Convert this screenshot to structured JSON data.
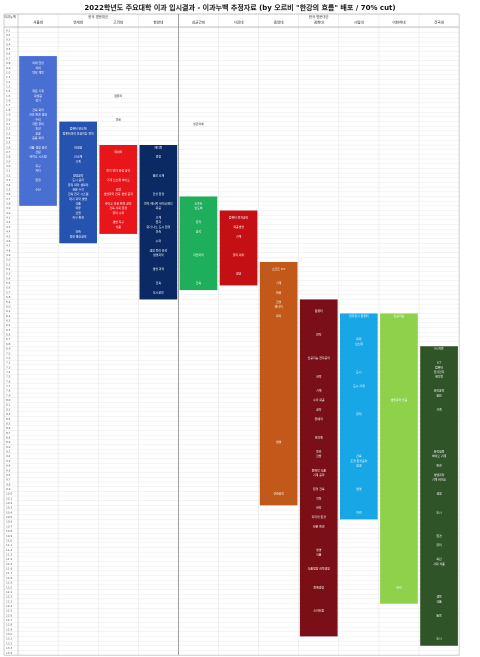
{
  "title": "2022학년도 주요대학 이과 입시결과 - 이과누백 추정자료 (by 오르비 \"한강의 흐름\" 배포 / 70% cut)",
  "corner_label": "이과누백",
  "groups": [
    {
      "label": "한국 명문대군"
    },
    {
      "label": "한국 명문대군"
    }
  ],
  "universities": [
    {
      "name": "서울대"
    },
    {
      "name": "연세대"
    },
    {
      "name": "고려대"
    },
    {
      "name": "한양대"
    },
    {
      "name": "성균관대"
    },
    {
      "name": "서강대"
    },
    {
      "name": "중앙대"
    },
    {
      "name": "경희대"
    },
    {
      "name": "시립대"
    },
    {
      "name": "이화여대"
    },
    {
      "name": "건국대"
    }
  ],
  "row_labels": [
    "0.1",
    "0.2",
    "0.3",
    "0.4",
    "0.5",
    "0.6",
    "0.7",
    "0.8",
    "0.9",
    "1.0",
    "1.1",
    "1.2",
    "1.3",
    "1.4",
    "1.5",
    "1.6",
    "1.7",
    "1.8",
    "1.9",
    "2.0",
    "2.1",
    "2.2",
    "2.3",
    "2.4",
    "2.5",
    "2.6",
    "2.7",
    "2.8",
    "2.9",
    "3.0",
    "3.1",
    "3.2",
    "3.3",
    "3.4",
    "3.5",
    "3.6",
    "3.7",
    "3.8",
    "3.9",
    "4.0",
    "4.1",
    "4.2",
    "4.3",
    "4.4",
    "4.5",
    "4.6",
    "4.7",
    "4.8",
    "4.9",
    "5.0",
    "5.1",
    "5.2",
    "5.3",
    "5.4",
    "5.5",
    "5.6",
    "5.7",
    "5.8",
    "5.9",
    "6.0",
    "6.1",
    "6.2",
    "6.3",
    "6.4",
    "6.5",
    "6.6",
    "6.7",
    "6.8",
    "6.9",
    "7.0",
    "7.1",
    "7.2",
    "7.3",
    "7.4",
    "7.5",
    "7.6",
    "7.7",
    "7.8",
    "7.9",
    "8.0",
    "8.1",
    "8.2",
    "8.3",
    "8.4",
    "8.5",
    "8.6",
    "8.7",
    "8.8",
    "8.9",
    "9.0",
    "9.1",
    "9.2",
    "9.3",
    "9.4",
    "9.5",
    "9.6",
    "9.7",
    "9.8",
    "9.9",
    "10.0",
    "10.1",
    "10.2",
    "10.3",
    "10.4",
    "10.5",
    "10.6",
    "10.7",
    "10.8",
    "10.9",
    "11.0",
    "11.1",
    "11.2",
    "11.3",
    "11.4",
    "11.5",
    "11.6",
    "11.7",
    "11.8",
    "11.9",
    "12.0",
    "12.1",
    "12.2",
    "12.3",
    "12.4",
    "12.5",
    "12.6",
    "12.7",
    "12.8",
    "12.9",
    "13.0",
    "13.1",
    "13.2",
    "13.3",
    "13.4"
  ],
  "colors": {
    "seoul": "#4a6fd2",
    "yonsei": "#2753b0",
    "korea": "#e8151b",
    "hanyang": "#0b2a63",
    "skku": "#1fae5b",
    "sogang": "#c40f14",
    "chungang": "#c2591a",
    "kyunghee": "#7a0f18",
    "uos": "#18a7e6",
    "ewha": "#8fd14b",
    "konkuk": "#2f5428",
    "grid": "#dcdcdc"
  },
  "blocks": [
    {
      "university": "서울대",
      "from": 0.7,
      "to": 3.8,
      "color": "seoul"
    },
    {
      "university": "연세대",
      "from": 2.1,
      "to": 4.6,
      "color": "yonsei"
    },
    {
      "university": "고려대",
      "from": 2.6,
      "to": 4.4,
      "color": "korea"
    },
    {
      "university": "한양대",
      "from": 2.6,
      "to": 5.8,
      "color": "hanyang"
    },
    {
      "university": "성균관대",
      "from": 3.7,
      "to": 5.6,
      "color": "skku"
    },
    {
      "university": "서강대",
      "from": 4.0,
      "to": 5.5,
      "color": "sogang"
    },
    {
      "university": "중앙대",
      "from": 5.1,
      "to": 10.2,
      "color": "chungang"
    },
    {
      "university": "경희대",
      "from": 5.9,
      "to": 13.0,
      "color": "kyunghee"
    },
    {
      "university": "시립대",
      "from": 6.2,
      "to": 10.5,
      "color": "uos"
    },
    {
      "university": "이화여대",
      "from": 6.2,
      "to": 12.3,
      "color": "ewha"
    },
    {
      "university": "건국대",
      "from": 6.9,
      "to": 13.2,
      "color": "konkuk"
    }
  ],
  "annotations": [
    {
      "university": "서울대",
      "row": 0.8,
      "text": "의대 연합"
    },
    {
      "university": "서울대",
      "row": 0.9,
      "text": "치의"
    },
    {
      "university": "서울대",
      "row": 1.0,
      "text": "약학 계열"
    },
    {
      "university": "서울대",
      "row": 1.4,
      "text": "재료 기계"
    },
    {
      "university": "서울대",
      "row": 1.5,
      "text": "화생공"
    },
    {
      "university": "서울대",
      "row": 1.6,
      "text": "전기"
    },
    {
      "university": "서울대",
      "row": 1.8,
      "text": "건축 화학"
    },
    {
      "university": "서울대",
      "row": 1.9,
      "text": "건설 환경 생명"
    },
    {
      "university": "서울대",
      "row": 2.0,
      "text": "수리"
    },
    {
      "university": "서울대",
      "row": 2.1,
      "text": "자원 물리"
    },
    {
      "university": "서울대",
      "row": 2.2,
      "text": "조선"
    },
    {
      "university": "서울대",
      "row": 2.3,
      "text": "항공"
    },
    {
      "university": "서울대",
      "row": 2.4,
      "text": "응용 화학"
    },
    {
      "university": "서울대",
      "row": 2.6,
      "text": "식품 생명 공학"
    },
    {
      "university": "서울대",
      "row": 2.7,
      "text": "산림"
    },
    {
      "university": "서울대",
      "row": 2.8,
      "text": "바이오 시스템"
    },
    {
      "university": "서울대",
      "row": 3.0,
      "text": "지구"
    },
    {
      "university": "서울대",
      "row": 3.1,
      "text": "지리"
    },
    {
      "university": "서울대",
      "row": 3.3,
      "text": "환경"
    },
    {
      "university": "서울대",
      "row": 3.5,
      "text": "수산"
    },
    {
      "university": "연세대",
      "row": 2.2,
      "text": "컴퓨터 반도체"
    },
    {
      "university": "연세대",
      "row": 2.3,
      "text": "컴퓨터과학 인공지능 전자"
    },
    {
      "university": "연세대",
      "row": 2.6,
      "text": "화생공"
    },
    {
      "university": "연세대",
      "row": 2.8,
      "text": "신소재"
    },
    {
      "university": "연세대",
      "row": 2.9,
      "text": "기계"
    },
    {
      "university": "연세대",
      "row": 3.2,
      "text": "생명공학"
    },
    {
      "university": "연세대",
      "row": 3.3,
      "text": "도시 공학"
    },
    {
      "university": "연세대",
      "row": 3.4,
      "text": "물리 화학 생화학"
    },
    {
      "university": "연세대",
      "row": 3.5,
      "text": "천문 수학"
    },
    {
      "university": "연세대",
      "row": 3.6,
      "text": "건축 전기 시스템"
    },
    {
      "university": "연세대",
      "row": 3.7,
      "text": "대기 과학 생명"
    },
    {
      "university": "연세대",
      "row": 3.8,
      "text": "식품"
    },
    {
      "university": "연세대",
      "row": 3.9,
      "text": "의류"
    },
    {
      "university": "연세대",
      "row": 4.0,
      "text": "산업"
    },
    {
      "university": "연세대",
      "row": 4.1,
      "text": "지구 환경"
    },
    {
      "university": "연세대",
      "row": 4.4,
      "text": "건축"
    },
    {
      "university": "연세대",
      "row": 4.5,
      "text": "정보 통신공학"
    },
    {
      "university": "고려대",
      "row": 1.8,
      "text": "반도체"
    },
    {
      "university": "고려대",
      "row": 2.4,
      "text": "자유"
    },
    {
      "university": "고려대",
      "row": 2.7,
      "text": "데이터"
    },
    {
      "university": "고려대",
      "row": 3.1,
      "text": "전기 전자 화생 공학"
    },
    {
      "university": "고려대",
      "row": 3.3,
      "text": "기계 신소재 바이오"
    },
    {
      "university": "고려대",
      "row": 3.5,
      "text": "산업"
    },
    {
      "university": "고려대",
      "row": 3.6,
      "text": "생명과학 건축 생명 공학"
    },
    {
      "university": "고려대",
      "row": 3.8,
      "text": "바이오 의료 환경 공학"
    },
    {
      "university": "고려대",
      "row": 3.9,
      "text": "건축 사회 환경"
    },
    {
      "university": "고려대",
      "row": 4.0,
      "text": "물리 수학"
    },
    {
      "university": "고려대",
      "row": 4.2,
      "text": "생명 지구"
    },
    {
      "university": "고려대",
      "row": 4.3,
      "text": "식품"
    },
    {
      "university": "한양대",
      "row": 2.6,
      "text": "메디컬"
    },
    {
      "university": "한양대",
      "row": 2.8,
      "text": "행정"
    },
    {
      "university": "한양대",
      "row": 3.2,
      "text": "융합 소재"
    },
    {
      "university": "한양대",
      "row": 3.6,
      "text": "건설 환경"
    },
    {
      "university": "한양대",
      "row": 3.8,
      "text": "전자 에너지 바이오메디"
    },
    {
      "university": "한양대",
      "row": 3.9,
      "text": "화공"
    },
    {
      "university": "한양대",
      "row": 4.1,
      "text": "기계"
    },
    {
      "university": "한양대",
      "row": 4.2,
      "text": "원자"
    },
    {
      "university": "한양대",
      "row": 4.3,
      "text": "유기 나노 도시 환경"
    },
    {
      "university": "한양대",
      "row": 4.4,
      "text": "건축"
    },
    {
      "university": "한양대",
      "row": 4.6,
      "text": "수학"
    },
    {
      "university": "한양대",
      "row": 4.8,
      "text": "생명 물리 화학"
    },
    {
      "university": "한양대",
      "row": 4.9,
      "text": "생명과학"
    },
    {
      "university": "한양대",
      "row": 5.2,
      "text": "생명 과학"
    },
    {
      "university": "한양대",
      "row": 5.5,
      "text": "건축"
    },
    {
      "university": "한양대",
      "row": 5.7,
      "text": "도시공학"
    },
    {
      "university": "성균관대",
      "row": 3.8,
      "text": "소프트"
    },
    {
      "university": "성균관대",
      "row": 3.9,
      "text": "반도체"
    },
    {
      "university": "성균관대",
      "row": 4.2,
      "text": "전자"
    },
    {
      "university": "성균관대",
      "row": 4.4,
      "text": "공학"
    },
    {
      "university": "성균관대",
      "row": 4.9,
      "text": "자연과학"
    },
    {
      "university": "성균관대",
      "row": 5.5,
      "text": "건축"
    },
    {
      "university": "서강대",
      "row": 4.1,
      "text": "컴퓨터 전자공학"
    },
    {
      "university": "서강대",
      "row": 4.3,
      "text": "화공생명"
    },
    {
      "university": "서강대",
      "row": 4.5,
      "text": "기계"
    },
    {
      "university": "서강대",
      "row": 4.9,
      "text": "물리 화학"
    },
    {
      "university": "서강대",
      "row": 5.3,
      "text": "생명"
    },
    {
      "university": "중앙대",
      "row": 5.2,
      "text": "소프트 ICT"
    },
    {
      "university": "중앙대",
      "row": 5.5,
      "text": "기계"
    },
    {
      "university": "중앙대",
      "row": 5.7,
      "text": "화공"
    },
    {
      "university": "중앙대",
      "row": 5.9,
      "text": "건설"
    },
    {
      "university": "중앙대",
      "row": 6.0,
      "text": "에너지"
    },
    {
      "university": "중앙대",
      "row": 6.2,
      "text": "화학"
    },
    {
      "university": "중앙대",
      "row": 8.9,
      "text": "생명"
    },
    {
      "university": "중앙대",
      "row": 10.0,
      "text": "건축공학"
    },
    {
      "university": "경희대",
      "row": 6.1,
      "text": "컴퓨터"
    },
    {
      "university": "경희대",
      "row": 6.6,
      "text": "전자"
    },
    {
      "university": "경희대",
      "row": 7.1,
      "text": "인공지능 전자공학"
    },
    {
      "university": "경희대",
      "row": 7.5,
      "text": "한약"
    },
    {
      "university": "경희대",
      "row": 7.8,
      "text": "기계"
    },
    {
      "university": "경희대",
      "row": 8.0,
      "text": "수학 화공"
    },
    {
      "university": "경희대",
      "row": 8.2,
      "text": "공학"
    },
    {
      "university": "경희대",
      "row": 8.4,
      "text": "원예학"
    },
    {
      "university": "경희대",
      "row": 8.8,
      "text": "한의예"
    },
    {
      "university": "경희대",
      "row": 9.1,
      "text": "물리"
    },
    {
      "university": "경희대",
      "row": 9.2,
      "text": "한방"
    },
    {
      "university": "경희대",
      "row": 9.5,
      "text": "원예학 식품"
    },
    {
      "university": "경희대",
      "row": 9.6,
      "text": "기계 공학"
    },
    {
      "university": "경희대",
      "row": 9.9,
      "text": "환경 건축"
    },
    {
      "university": "경희대",
      "row": 10.1,
      "text": "지질"
    },
    {
      "university": "경희대",
      "row": 10.3,
      "text": "화학"
    },
    {
      "university": "경희대",
      "row": 10.5,
      "text": "지리학 환경"
    },
    {
      "university": "경희대",
      "row": 10.7,
      "text": "천문 환경"
    },
    {
      "university": "경희대",
      "row": 11.2,
      "text": "생명"
    },
    {
      "university": "경희대",
      "row": 11.3,
      "text": "식품"
    },
    {
      "university": "경희대",
      "row": 11.6,
      "text": "식품영양 한약생명"
    },
    {
      "university": "경희대",
      "row": 12.0,
      "text": "원예생명"
    },
    {
      "university": "경희대",
      "row": 12.5,
      "text": "스마트팜"
    },
    {
      "university": "시립대",
      "row": 6.2,
      "text": "전자전기 컴퓨터"
    },
    {
      "university": "시립대",
      "row": 6.7,
      "text": "화학"
    },
    {
      "university": "시립대",
      "row": 6.8,
      "text": "신소재"
    },
    {
      "university": "시립대",
      "row": 7.4,
      "text": "도시"
    },
    {
      "university": "시립대",
      "row": 7.7,
      "text": "도시 기계"
    },
    {
      "university": "시립대",
      "row": 8.3,
      "text": "물리"
    },
    {
      "university": "시립대",
      "row": 9.2,
      "text": "건축"
    },
    {
      "university": "시립대",
      "row": 9.3,
      "text": "조경 환경공학"
    },
    {
      "university": "시립대",
      "row": 9.4,
      "text": "생명"
    },
    {
      "university": "시립대",
      "row": 9.9,
      "text": "생명"
    },
    {
      "university": "시립대",
      "row": 10.4,
      "text": "지리"
    },
    {
      "university": "이화여대",
      "row": 6.2,
      "text": "인공지능"
    },
    {
      "university": "이화여대",
      "row": 8.0,
      "text": "생명과학 전공"
    },
    {
      "university": "이화여대",
      "row": 12.0,
      "text": "화학"
    },
    {
      "university": "건국대",
      "row": 6.9,
      "text": "KU자율"
    },
    {
      "university": "건국대",
      "row": 7.2,
      "text": "ICT"
    },
    {
      "university": "건국대",
      "row": 7.3,
      "text": "컴퓨터"
    },
    {
      "university": "건국대",
      "row": 7.4,
      "text": "전기전자"
    },
    {
      "university": "건국대",
      "row": 7.5,
      "text": "메디컬"
    },
    {
      "university": "건국대",
      "row": 7.8,
      "text": "화학공학"
    },
    {
      "university": "건국대",
      "row": 7.9,
      "text": "융합"
    },
    {
      "university": "건국대",
      "row": 8.2,
      "text": "기계"
    },
    {
      "university": "건국대",
      "row": 9.1,
      "text": "화학생물"
    },
    {
      "university": "건국대",
      "row": 9.2,
      "text": "바이오 기계"
    },
    {
      "university": "건국대",
      "row": 9.4,
      "text": "환경"
    },
    {
      "university": "건국대",
      "row": 9.6,
      "text": "생명과학"
    },
    {
      "university": "건국대",
      "row": 9.7,
      "text": "기계 바이오"
    },
    {
      "university": "건국대",
      "row": 10.0,
      "text": "생명"
    },
    {
      "university": "건국대",
      "row": 10.4,
      "text": "도시"
    },
    {
      "university": "건국대",
      "row": 10.9,
      "text": "환경"
    },
    {
      "university": "건국대",
      "row": 11.1,
      "text": "물리"
    },
    {
      "university": "건국대",
      "row": 11.4,
      "text": "축산"
    },
    {
      "university": "건국대",
      "row": 11.5,
      "text": "사회 식품"
    },
    {
      "university": "건국대",
      "row": 12.2,
      "text": "생물"
    },
    {
      "university": "건국대",
      "row": 12.3,
      "text": "식품"
    },
    {
      "university": "건국대",
      "row": 12.6,
      "text": "동물"
    },
    {
      "university": "건국대",
      "row": 13.1,
      "text": "도시"
    }
  ],
  "side_notes": [
    {
      "university": "고려대",
      "row": 1.5,
      "text": "컴퓨터"
    },
    {
      "university": "고려대",
      "row": 2.0,
      "text": "의료"
    },
    {
      "university": "성균관대",
      "row": 2.1,
      "text": "성균의예"
    }
  ]
}
